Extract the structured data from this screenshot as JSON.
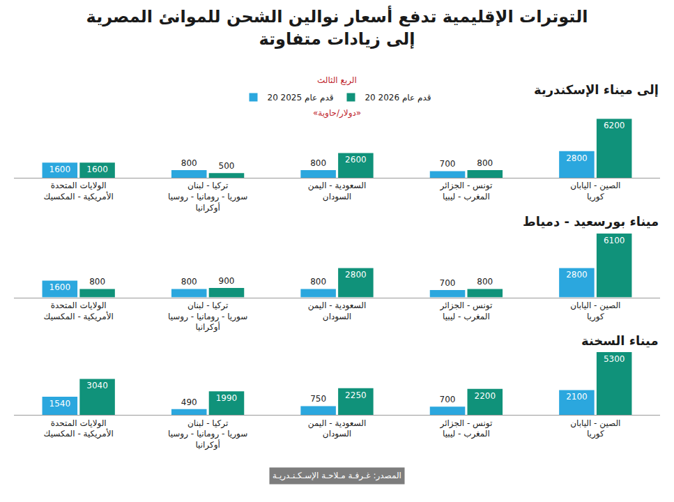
{
  "title": "التوترات الإقليمية تدفع أسعار نوالين الشحن للموانئ المصرية\nإلى زيادات متفاوتة",
  "period": "الربع الثالث",
  "unit": "«دولار/حاوية»",
  "source": "المصدر: غـرفـة مـلاحـة الإسـكـنـدريـة",
  "chart_data": [
    {
      "type": "bar",
      "title": "إلى ميناء الإسكندرية",
      "categories": [
        "الصين - اليابان\nكوريا",
        "تونس - الجزائر\nالمغرب - ليبيا",
        "السعودية - اليمن\nالسودان",
        "تركيا - لبنان\nسوريا - رومانيا - روسيا\nأوكرانيا",
        "الولايات المتحدة\nالأمريكية - المكسيك"
      ],
      "series": [
        {
          "name": "20 قدم عام 2026",
          "color": "#10927a",
          "values": [
            6200,
            800,
            2600,
            500,
            1600
          ]
        },
        {
          "name": "20 قدم عام 2025",
          "color": "#2ba7de",
          "values": [
            2800,
            700,
            800,
            800,
            1600
          ]
        }
      ],
      "ylim": [
        0,
        6200
      ],
      "tick_labels": "x",
      "data_labels": true,
      "legend": "top"
    },
    {
      "type": "bar",
      "title": "ميناء بورسعيد - دمياط",
      "categories": [
        "الصين - اليابان\nكوريا",
        "تونس - الجزائر\nالمغرب - ليبيا",
        "السعودية - اليمن\nالسودان",
        "تركيا - لبنان\nسوريا - رومانيا - روسيا\nأوكرانيا",
        "الولايات المتحدة\nالأمريكية - المكسيك"
      ],
      "series": [
        {
          "name": "20 قدم عام 2026",
          "color": "#10927a",
          "values": [
            6100,
            800,
            2800,
            900,
            800
          ]
        },
        {
          "name": "20 قدم عام 2025",
          "color": "#2ba7de",
          "values": [
            2800,
            700,
            800,
            800,
            1600
          ]
        }
      ],
      "ylim": [
        0,
        6100
      ],
      "tick_labels": "x",
      "data_labels": true
    },
    {
      "type": "bar",
      "title": "ميناء السخنة",
      "categories": [
        "الصين - اليابان\nكوريا",
        "تونس - الجزائر\nالمغرب - ليبيا",
        "السعودية - اليمن\nالسودان",
        "تركيا - لبنان\nسوريا - رومانيا - روسيا\nأوكرانيا",
        "الولايات المتحدة\nالأمريكية - المكسيك"
      ],
      "series": [
        {
          "name": "20 قدم عام 2026",
          "color": "#10927a",
          "values": [
            5300,
            2200,
            2250,
            1990,
            3040
          ]
        },
        {
          "name": "20 قدم عام 2025",
          "color": "#2ba7de",
          "values": [
            2100,
            700,
            750,
            490,
            1540
          ]
        }
      ],
      "ylim": [
        0,
        5300
      ],
      "tick_labels": "x",
      "data_labels": true
    }
  ]
}
